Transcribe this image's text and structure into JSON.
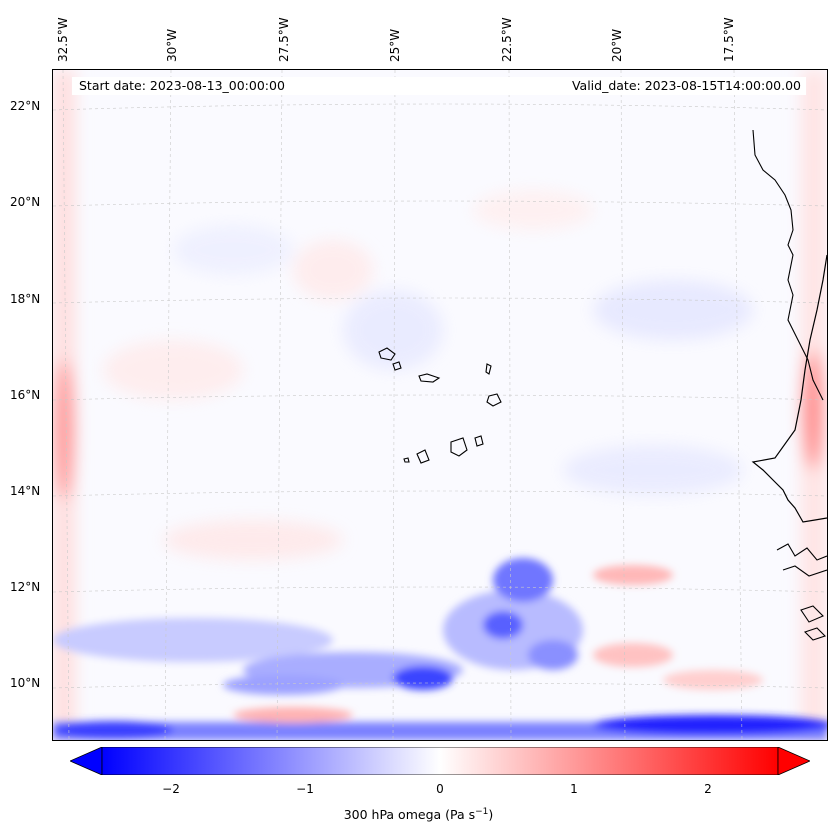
{
  "map": {
    "start_date": "Start date: 2023-08-13_00:00:00",
    "valid_date": "Valid_date: 2023-08-15T14:00:00.00",
    "variable": "300 hPa omega",
    "units": "Pa s⁻¹",
    "colorbar_label": "300 hPa omega (Pa s",
    "colorbar_unit_sup": "−1",
    "colorbar_label_close": ")",
    "colormap": "bwr",
    "value_range": [
      -2.7,
      2.7
    ],
    "lon_labels": [
      "32.5°W",
      "30°W",
      "27.5°W",
      "25°W",
      "22.5°W",
      "20°W",
      "17.5°W"
    ],
    "lat_labels": [
      "22°N",
      "20°N",
      "18°N",
      "16°N",
      "14°N",
      "12°N",
      "10°N"
    ],
    "colorbar_ticks": [
      "−2",
      "−1",
      "0",
      "1",
      "2"
    ],
    "colors": {
      "neg": "#0000ff",
      "pos": "#ff0000",
      "mid": "#ffffff",
      "coast": "#000000"
    }
  }
}
